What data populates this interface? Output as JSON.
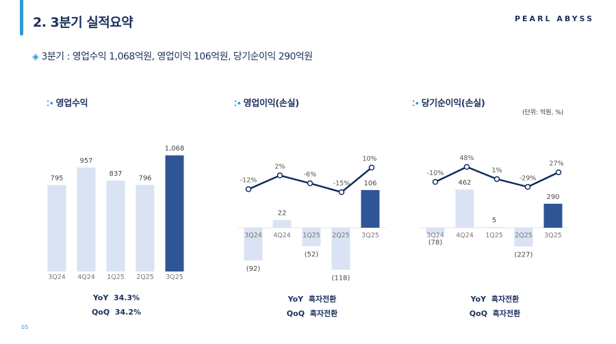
{
  "header": {
    "title": "2. 3분기 실적요약",
    "logo": "PEARL ABYSS"
  },
  "summary": "3분기 : 영업수익 1,068억원, 영업이익 106억원, 당기순이익 290억원",
  "unit_note": "(단위: 억원, %)",
  "page_number": "05",
  "colors": {
    "accent": "#2b9ad6",
    "navy": "#1b2f5a",
    "bar_light": "#dae3f3",
    "bar_dark": "#2f5597",
    "line": "#0d2a5c"
  },
  "chart_data": [
    {
      "type": "bar",
      "title": "영업수익",
      "categories": [
        "3Q24",
        "4Q24",
        "1Q25",
        "2Q25",
        "3Q25"
      ],
      "values": [
        795,
        957,
        837,
        796,
        1068
      ],
      "labels": [
        "795",
        "957",
        "837",
        "796",
        "1,068"
      ],
      "metrics": [
        {
          "label": "YoY",
          "value": "34.3%"
        },
        {
          "label": "QoQ",
          "value": "34.2%"
        }
      ]
    },
    {
      "type": "bar+line",
      "title": "영업이익(손실)",
      "categories": [
        "3Q24",
        "4Q24",
        "1Q25",
        "2Q25",
        "3Q25"
      ],
      "values": [
        -92,
        22,
        -52,
        -118,
        106
      ],
      "labels": [
        "(92)",
        "22",
        "(52)",
        "(118)",
        "106"
      ],
      "margin_pct": [
        -12,
        2,
        -6,
        -15,
        10
      ],
      "margin_labels": [
        "-12%",
        "2%",
        "-6%",
        "-15%",
        "10%"
      ],
      "metrics": [
        {
          "label": "YoY",
          "value": "흑자전환"
        },
        {
          "label": "QoQ",
          "value": "흑자전환"
        }
      ]
    },
    {
      "type": "bar+line",
      "title": "당기순이익(손실)",
      "categories": [
        "3Q24",
        "4Q24",
        "1Q25",
        "2Q25",
        "3Q25"
      ],
      "values": [
        -78,
        462,
        5,
        -227,
        290
      ],
      "labels": [
        "(78)",
        "462",
        "5",
        "(227)",
        "290"
      ],
      "margin_pct": [
        -10,
        48,
        1,
        -29,
        27
      ],
      "margin_labels": [
        "-10%",
        "48%",
        "1%",
        "-29%",
        "27%"
      ],
      "metrics": [
        {
          "label": "YoY",
          "value": "흑자전환"
        },
        {
          "label": "QoQ",
          "value": "흑자전환"
        }
      ]
    }
  ]
}
